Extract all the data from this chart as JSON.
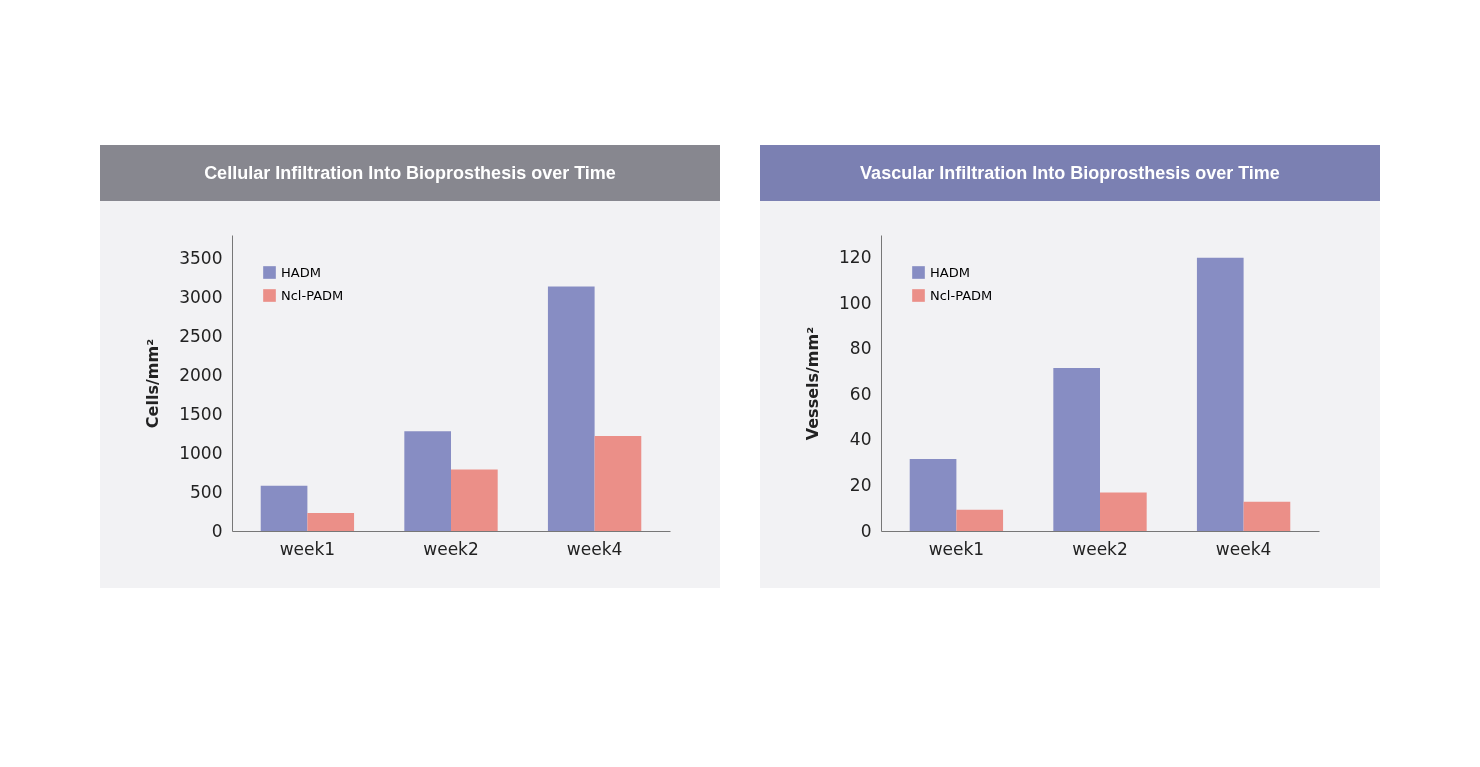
{
  "chart_data": [
    {
      "type": "bar",
      "title": "Cellular Infiltration Into Bioprosthesis over Time",
      "ylabel": "Cells/mm²",
      "categories": [
        "week1",
        "week2",
        "week4"
      ],
      "series": [
        {
          "name": "HADM",
          "color": "#878dc3",
          "values": [
            580,
            1280,
            3140
          ]
        },
        {
          "name": "Ncl-PADM",
          "color": "#eb8f88",
          "values": [
            230,
            790,
            1220
          ]
        }
      ],
      "ylim": [
        0,
        3800
      ],
      "yticks": [
        0,
        500,
        1000,
        1500,
        2000,
        2500,
        3000,
        3500
      ],
      "grid": false,
      "legend": "top left"
    },
    {
      "type": "bar",
      "title": "Vascular Infiltration Into Bioprosthesis over Time",
      "ylabel": "Vessels/mm²",
      "categories": [
        "week1",
        "week2",
        "week4"
      ],
      "series": [
        {
          "name": "HADM",
          "color": "#878dc3",
          "values": [
            31.6,
            71.6,
            120
          ]
        },
        {
          "name": "Ncl-PADM",
          "color": "#eb8f88",
          "values": [
            9.3,
            16.9,
            12.9
          ]
        }
      ],
      "ylim": [
        0,
        130
      ],
      "yticks": [
        0,
        20,
        40,
        60,
        80,
        100,
        120
      ],
      "grid": false,
      "legend": "top left"
    }
  ]
}
